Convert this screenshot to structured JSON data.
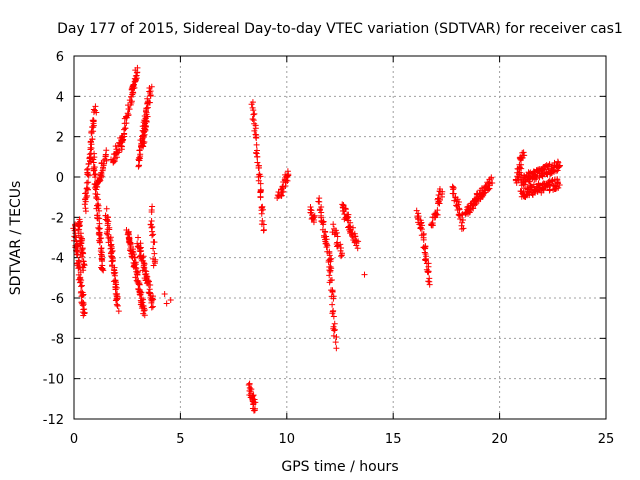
{
  "chart_data": {
    "type": "scatter",
    "title": "Day 177 of 2015, Sidereal Day-to-day VTEC variation (SDTVAR) for receiver cas1",
    "xlabel": "GPS time / hours",
    "ylabel": "SDTVAR / TECUs",
    "xlim": [
      0,
      25
    ],
    "ylim": [
      -12,
      6
    ],
    "xticks": [
      0,
      5,
      10,
      15,
      20,
      25
    ],
    "yticks": [
      -12,
      -10,
      -8,
      -6,
      -4,
      -2,
      0,
      2,
      4,
      6
    ],
    "xtick_labels": [
      "0",
      "5",
      "10",
      "15",
      "20",
      "25"
    ],
    "ytick_labels": [
      "-12",
      "-10",
      "-8",
      "-6",
      "-4",
      "-2",
      "0",
      "2",
      "4",
      "6"
    ],
    "grid": true,
    "marker": "+",
    "color": "#ff0000",
    "segments": [
      {
        "x": [
          0.0,
          0.5
        ],
        "y": [
          -2.5,
          -6.9
        ],
        "n": 60
      },
      {
        "x": [
          0.2,
          0.45
        ],
        "y": [
          -2.0,
          -4.5
        ],
        "n": 40
      },
      {
        "x": [
          0.5,
          1.0
        ],
        "y": [
          -1.5,
          3.4
        ],
        "n": 60
      },
      {
        "x": [
          0.9,
          1.35
        ],
        "y": [
          1.0,
          -4.8
        ],
        "n": 70
      },
      {
        "x": [
          1.1,
          1.5
        ],
        "y": [
          -0.5,
          1.1
        ],
        "n": 30
      },
      {
        "x": [
          1.5,
          2.1
        ],
        "y": [
          -1.8,
          -6.5
        ],
        "n": 70
      },
      {
        "x": [
          1.8,
          2.3
        ],
        "y": [
          0.8,
          2.0
        ],
        "n": 30
      },
      {
        "x": [
          2.2,
          2.7
        ],
        "y": [
          1.5,
          3.9
        ],
        "n": 30
      },
      {
        "x": [
          2.7,
          2.95
        ],
        "y": [
          4.0,
          5.2
        ],
        "n": 30
      },
      {
        "x": [
          2.5,
          3.3
        ],
        "y": [
          -2.5,
          -6.7
        ],
        "n": 90
      },
      {
        "x": [
          3.0,
          3.4
        ],
        "y": [
          0.5,
          3.2
        ],
        "n": 40
      },
      {
        "x": [
          3.2,
          3.6
        ],
        "y": [
          1.5,
          4.5
        ],
        "n": 40
      },
      {
        "x": [
          3.0,
          3.7
        ],
        "y": [
          -3.2,
          -6.3
        ],
        "n": 60
      },
      {
        "x": [
          3.6,
          3.8
        ],
        "y": [
          -1.5,
          -4.5
        ],
        "n": 20
      },
      {
        "x": [
          4.3,
          4.5
        ],
        "y": [
          -6.0,
          -6.3
        ],
        "n": 3
      },
      {
        "x": [
          8.25,
          8.5
        ],
        "y": [
          -10.4,
          -11.5
        ],
        "n": 30
      },
      {
        "x": [
          8.4,
          8.9
        ],
        "y": [
          3.6,
          -2.5
        ],
        "n": 50
      },
      {
        "x": [
          9.6,
          10.1
        ],
        "y": [
          -1.0,
          0.2
        ],
        "n": 30
      },
      {
        "x": [
          11.1,
          11.3
        ],
        "y": [
          -1.7,
          -2.1
        ],
        "n": 15
      },
      {
        "x": [
          11.5,
          12.1
        ],
        "y": [
          -1.2,
          -4.5
        ],
        "n": 40
      },
      {
        "x": [
          12.0,
          12.3
        ],
        "y": [
          -4.0,
          -8.4
        ],
        "n": 30
      },
      {
        "x": [
          12.2,
          12.6
        ],
        "y": [
          -2.5,
          -4.0
        ],
        "n": 20
      },
      {
        "x": [
          12.6,
          13.3
        ],
        "y": [
          -1.4,
          -3.4
        ],
        "n": 50
      },
      {
        "x": [
          13.7,
          13.7
        ],
        "y": [
          -5.0,
          -5.0
        ],
        "n": 1
      },
      {
        "x": [
          16.1,
          16.4
        ],
        "y": [
          -1.8,
          -2.6
        ],
        "n": 15
      },
      {
        "x": [
          16.4,
          16.7
        ],
        "y": [
          -2.8,
          -5.2
        ],
        "n": 30
      },
      {
        "x": [
          16.8,
          17.3
        ],
        "y": [
          -2.6,
          -0.6
        ],
        "n": 30
      },
      {
        "x": [
          17.8,
          18.3
        ],
        "y": [
          -0.6,
          -2.4
        ],
        "n": 30
      },
      {
        "x": [
          18.4,
          19.0
        ],
        "y": [
          -1.8,
          -1.0
        ],
        "n": 40
      },
      {
        "x": [
          19.0,
          19.6
        ],
        "y": [
          -1.0,
          -0.2
        ],
        "n": 40
      },
      {
        "x": [
          20.8,
          21.1
        ],
        "y": [
          -0.2,
          1.2
        ],
        "n": 30
      },
      {
        "x": [
          21.0,
          22.8
        ],
        "y": [
          -0.2,
          0.6
        ],
        "n": 110
      },
      {
        "x": [
          21.0,
          22.8
        ],
        "y": [
          -0.8,
          -0.3
        ],
        "n": 100
      }
    ]
  }
}
